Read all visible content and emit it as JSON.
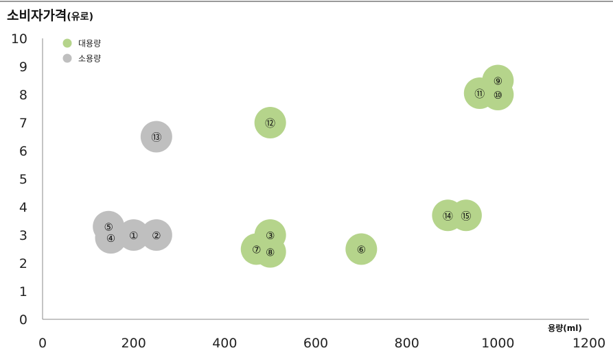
{
  "chart_data": {
    "type": "scatter",
    "title": "소비자가격",
    "title_unit": "(유로)",
    "xlabel": "용량(ml)",
    "ylabel": "",
    "xlim": [
      0,
      1200
    ],
    "ylim": [
      0,
      10
    ],
    "x_ticks": [
      0,
      200,
      400,
      600,
      800,
      1000,
      1200
    ],
    "y_ticks": [
      0,
      1,
      2,
      3,
      4,
      5,
      6,
      7,
      8,
      9,
      10
    ],
    "grid": false,
    "legend_position": "top-left",
    "series": [
      {
        "name": "대용량",
        "color": "#b5d48b",
        "points": [
          {
            "label": "⑫",
            "x": 500,
            "y": 7.0
          },
          {
            "label": "③",
            "x": 500,
            "y": 3.0
          },
          {
            "label": "⑦",
            "x": 470,
            "y": 2.5
          },
          {
            "label": "⑧",
            "x": 500,
            "y": 2.4
          },
          {
            "label": "⑥",
            "x": 700,
            "y": 2.5
          },
          {
            "label": "⑨",
            "x": 1000,
            "y": 8.5
          },
          {
            "label": "⑪",
            "x": 960,
            "y": 8.05
          },
          {
            "label": "⑩",
            "x": 1000,
            "y": 8.0
          },
          {
            "label": "⑭",
            "x": 890,
            "y": 3.7
          },
          {
            "label": "⑮",
            "x": 930,
            "y": 3.7
          }
        ]
      },
      {
        "name": "소용량",
        "color": "#bfbfbf",
        "points": [
          {
            "label": "⑬",
            "x": 250,
            "y": 6.5
          },
          {
            "label": "⑤",
            "x": 145,
            "y": 3.3
          },
          {
            "label": "④",
            "x": 150,
            "y": 2.9
          },
          {
            "label": "①",
            "x": 200,
            "y": 3.0
          },
          {
            "label": "②",
            "x": 250,
            "y": 3.0
          }
        ]
      }
    ]
  }
}
